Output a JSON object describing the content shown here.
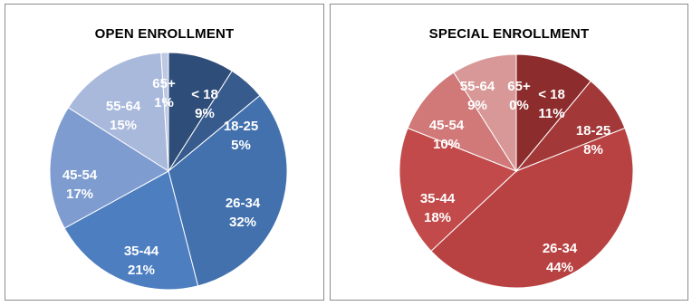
{
  "chart_data": [
    {
      "type": "pie",
      "title": "OPEN ENROLLMENT",
      "start_angle_deg": 0,
      "direction": "clockwise",
      "legend": "none",
      "slices": [
        {
          "label": "< 18",
          "value": 9,
          "value_label": "9%",
          "color": "#2e4d78"
        },
        {
          "label": "18-25",
          "value": 5,
          "value_label": "5%",
          "color": "#365b8c"
        },
        {
          "label": "26-34",
          "value": 32,
          "value_label": "32%",
          "color": "#4271ad"
        },
        {
          "label": "35-44",
          "value": 21,
          "value_label": "21%",
          "color": "#4d7ec0"
        },
        {
          "label": "45-54",
          "value": 17,
          "value_label": "17%",
          "color": "#7e9ccf"
        },
        {
          "label": "55-64",
          "value": 15,
          "value_label": "15%",
          "color": "#a9b9dc"
        },
        {
          "label": "65+",
          "value": 1,
          "value_label": "1%",
          "color": "#bdc9e3"
        }
      ]
    },
    {
      "type": "pie",
      "title": "SPECIAL ENROLLMENT",
      "start_angle_deg": 0,
      "direction": "clockwise",
      "legend": "none",
      "slices": [
        {
          "label": "< 18",
          "value": 11,
          "value_label": "11%",
          "color": "#8c2c2c"
        },
        {
          "label": "18-25",
          "value": 8,
          "value_label": "8%",
          "color": "#a23838"
        },
        {
          "label": "26-34",
          "value": 44,
          "value_label": "44%",
          "color": "#b84242"
        },
        {
          "label": "35-44",
          "value": 18,
          "value_label": "18%",
          "color": "#c24a4a"
        },
        {
          "label": "45-54",
          "value": 10,
          "value_label": "10%",
          "color": "#d17878"
        },
        {
          "label": "55-64",
          "value": 9,
          "value_label": "9%",
          "color": "#d89898"
        },
        {
          "label": "65+",
          "value": 0,
          "value_label": "0%",
          "color": "#e2b3b3"
        }
      ]
    }
  ]
}
